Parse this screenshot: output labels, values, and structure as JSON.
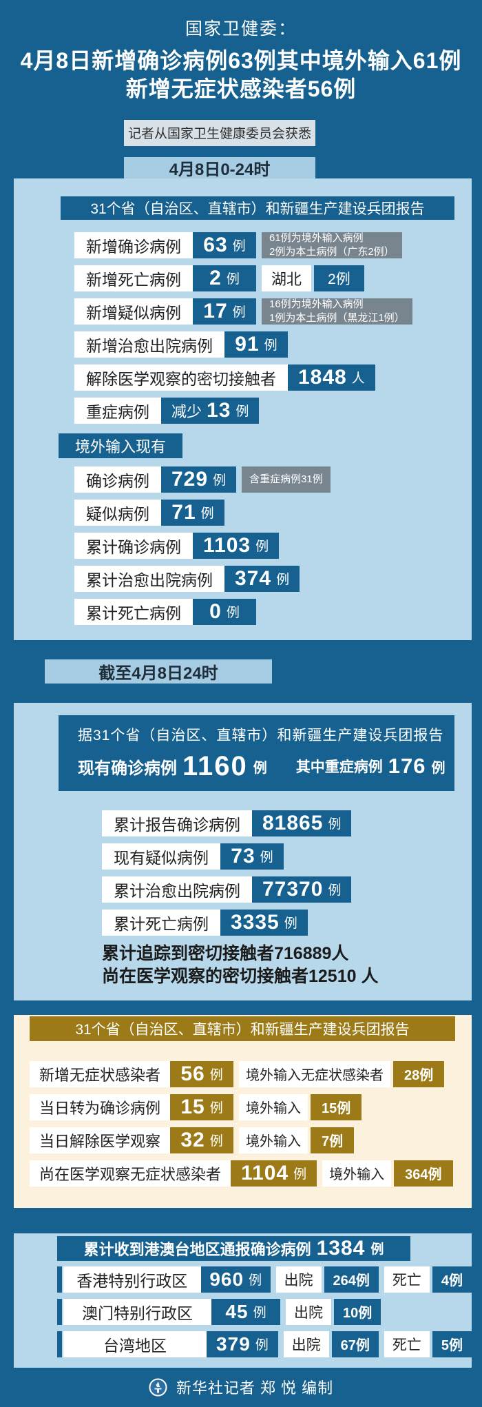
{
  "colors": {
    "deep": "#16618F",
    "panel": "#B7D8EB",
    "tab": "#A6CCE4",
    "gray": "#78858F",
    "info": "#D9E1E8",
    "cream": "#FCF1DC",
    "gold": "#9C7A17",
    "ink": "#222222",
    "white": "#FFFFFF"
  },
  "header": {
    "kicker": "国家卫健委：",
    "title_line1": "4月8日新增确诊病例63例其中境外输入61例",
    "title_line2": "新增无症状感染者56例",
    "source_note": "记者从国家卫生健康委员会获悉"
  },
  "section_daily": {
    "tab": "4月8日0-24时",
    "report_header": "31个省（自治区、直辖市）和新疆生产建设兵团报告",
    "rows": [
      {
        "label": "新增确诊病例",
        "value": "63",
        "unit": "例",
        "note_lines": [
          "61例为境外输入病例",
          "2例为本土病例（广东2例）"
        ]
      },
      {
        "label": "新增死亡病例",
        "value": "2",
        "unit": "例",
        "pair_label": "湖北",
        "pair_value": "2例"
      },
      {
        "label": "新增疑似病例",
        "value": "17",
        "unit": "例",
        "note_lines": [
          "16例为境外输入病例",
          "1例为本土病例（黑龙江1例）"
        ]
      },
      {
        "label": "新增治愈出院病例",
        "value": "91",
        "unit": "例"
      },
      {
        "label": "解除医学观察的密切接触者",
        "value": "1848",
        "unit": "人"
      },
      {
        "label": "重症病例",
        "value_prefix": "减少",
        "value": "13",
        "unit": "例"
      }
    ],
    "imported_label": "境外输入现有",
    "imported_rows": [
      {
        "label": "确诊病例",
        "value": "729",
        "unit": "例",
        "note_lines": [
          "含重症病例31例"
        ]
      },
      {
        "label": "疑似病例",
        "value": "71",
        "unit": "例"
      },
      {
        "label": "累计确诊病例",
        "value": "1103",
        "unit": "例"
      },
      {
        "label": "累计治愈出院病例",
        "value": "374",
        "unit": "例"
      },
      {
        "label": "累计死亡病例",
        "value": "0",
        "unit": "例"
      }
    ]
  },
  "section_cumulative": {
    "tab": "截至4月8日24时",
    "box_line1": "据31个省（自治区、直辖市）和新疆生产建设兵团报告",
    "box_existing_label": "现有确诊病例",
    "box_existing_value": "1160",
    "box_existing_unit": "例",
    "box_severe_label": "其中重症病例",
    "box_severe_value": "176",
    "box_severe_unit": "例",
    "rows": [
      {
        "label": "累计报告确诊病例",
        "value": "81865",
        "unit": "例"
      },
      {
        "label": "现有疑似病例",
        "value": "73",
        "unit": "例"
      },
      {
        "label": "累计治愈出院病例",
        "value": "77370",
        "unit": "例"
      },
      {
        "label": "累计死亡病例",
        "value": "3335",
        "unit": "例"
      }
    ],
    "contact_line1": "累计追踪到密切接触者716889人",
    "contact_line2": "尚在医学观察的密切接触者12510 人"
  },
  "section_asymptomatic": {
    "report_header": "31个省（自治区、直辖市）和新疆生产建设兵团报告",
    "rows": [
      {
        "label": "新增无症状感染者",
        "value": "56",
        "unit": "例",
        "sub_label": "境外输入无症状感染者",
        "sub_value": "28例"
      },
      {
        "label": "当日转为确诊病例",
        "value": "15",
        "unit": "例",
        "sub_label": "境外输入",
        "sub_value": "15例"
      },
      {
        "label": "当日解除医学观察",
        "value": "32",
        "unit": "例",
        "sub_label": "境外输入",
        "sub_value": "7例"
      },
      {
        "label": "尚在医学观察无症状感染者",
        "value": "1104",
        "unit": "例",
        "sub_label": "境外输入",
        "sub_value": "364例"
      }
    ]
  },
  "section_hmt": {
    "header_label": "累计收到港澳台地区通报确诊病例",
    "header_value": "1384",
    "header_unit": "例",
    "rows": [
      {
        "region": "香港特别行政区",
        "value": "960",
        "unit": "例",
        "discharged_label": "出院",
        "discharged": "264例",
        "deaths_label": "死亡",
        "deaths": "4例"
      },
      {
        "region": "澳门特别行政区",
        "value": "45",
        "unit": "例",
        "discharged_label": "出院",
        "discharged": "10例"
      },
      {
        "region": "台湾地区",
        "value": "379",
        "unit": "例",
        "discharged_label": "出院",
        "discharged": "67例",
        "deaths_label": "死亡",
        "deaths": "5例"
      }
    ]
  },
  "footer": {
    "credit": "新华社记者 郑 悦 编制",
    "logo": "xinhua-emblem"
  },
  "chart_data": [
    {
      "type": "table",
      "title": "4月8日0-24时 31个省（自治区、直辖市）和新疆生产建设兵团报告",
      "rows": [
        {
          "label": "新增确诊病例",
          "value": 63,
          "unit": "例",
          "note": "61例为境外输入病例；2例为本土病例（广东2例）"
        },
        {
          "label": "新增死亡病例",
          "value": 2,
          "unit": "例",
          "note": "湖北2例"
        },
        {
          "label": "新增疑似病例",
          "value": 17,
          "unit": "例",
          "note": "16例为境外输入病例；1例为本土病例（黑龙江1例）"
        },
        {
          "label": "新增治愈出院病例",
          "value": 91,
          "unit": "例"
        },
        {
          "label": "解除医学观察的密切接触者",
          "value": 1848,
          "unit": "人"
        },
        {
          "label": "重症病例",
          "value": -13,
          "unit": "例",
          "note": "减少13例"
        }
      ]
    },
    {
      "type": "table",
      "title": "境外输入现有",
      "rows": [
        {
          "label": "确诊病例",
          "value": 729,
          "unit": "例",
          "note": "含重症病例31例"
        },
        {
          "label": "疑似病例",
          "value": 71,
          "unit": "例"
        },
        {
          "label": "累计确诊病例",
          "value": 1103,
          "unit": "例"
        },
        {
          "label": "累计治愈出院病例",
          "value": 374,
          "unit": "例"
        },
        {
          "label": "累计死亡病例",
          "value": 0,
          "unit": "例"
        }
      ]
    },
    {
      "type": "table",
      "title": "截至4月8日24时 据31个省（自治区、直辖市）和新疆生产建设兵团报告",
      "rows": [
        {
          "label": "现有确诊病例",
          "value": 1160,
          "unit": "例"
        },
        {
          "label": "其中重症病例",
          "value": 176,
          "unit": "例"
        },
        {
          "label": "累计报告确诊病例",
          "value": 81865,
          "unit": "例"
        },
        {
          "label": "现有疑似病例",
          "value": 73,
          "unit": "例"
        },
        {
          "label": "累计治愈出院病例",
          "value": 77370,
          "unit": "例"
        },
        {
          "label": "累计死亡病例",
          "value": 3335,
          "unit": "例"
        },
        {
          "label": "累计追踪到密切接触者",
          "value": 716889,
          "unit": "人"
        },
        {
          "label": "尚在医学观察的密切接触者",
          "value": 12510,
          "unit": "人"
        }
      ]
    },
    {
      "type": "table",
      "title": "无症状感染者 31个省（自治区、直辖市）和新疆生产建设兵团报告",
      "rows": [
        {
          "label": "新增无症状感染者",
          "value": 56,
          "unit": "例",
          "note": "境外输入无症状感染者28例"
        },
        {
          "label": "当日转为确诊病例",
          "value": 15,
          "unit": "例",
          "note": "境外输入15例"
        },
        {
          "label": "当日解除医学观察",
          "value": 32,
          "unit": "例",
          "note": "境外输入7例"
        },
        {
          "label": "尚在医学观察无症状感染者",
          "value": 1104,
          "unit": "例",
          "note": "境外输入364例"
        }
      ]
    },
    {
      "type": "table",
      "title": "累计收到港澳台地区通报确诊病例1384例",
      "rows": [
        {
          "label": "香港特别行政区",
          "value": 960,
          "unit": "例",
          "note": "出院264例；死亡4例"
        },
        {
          "label": "澳门特别行政区",
          "value": 45,
          "unit": "例",
          "note": "出院10例"
        },
        {
          "label": "台湾地区",
          "value": 379,
          "unit": "例",
          "note": "出院67例；死亡5例"
        }
      ]
    }
  ]
}
